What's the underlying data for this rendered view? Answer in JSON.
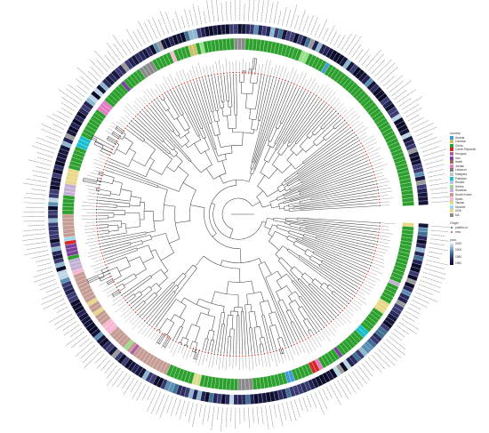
{
  "figure": {
    "leaf_count": 280,
    "legend": {
      "country": {
        "title": "country",
        "items": [
          {
            "label": "Austria",
            "color": "#3f9bd6"
          },
          {
            "label": "Canada",
            "color": "#c9c16a"
          },
          {
            "label": "China",
            "color": "#2ca02c"
          },
          {
            "label": "Czech Republic",
            "color": "#d62728"
          },
          {
            "label": "Hungary",
            "color": "#b05ea1"
          },
          {
            "label": "Iran",
            "color": "#7b3f9c"
          },
          {
            "label": "Israel",
            "color": "#9a6a5a"
          },
          {
            "label": "Jordan",
            "color": "#e57bc3"
          },
          {
            "label": "Lebanon",
            "color": "#7d7d7d"
          },
          {
            "label": "Malaysia",
            "color": "#c7c7c7"
          },
          {
            "label": "Pakistan",
            "color": "#17becf"
          },
          {
            "label": "Russia",
            "color": "#aec7e8"
          },
          {
            "label": "Serbia",
            "color": "#98df8a"
          },
          {
            "label": "Slovakia",
            "color": "#c5b0d5"
          },
          {
            "label": "South Korea",
            "color": "#c49c94"
          },
          {
            "label": "Spain",
            "color": "#f7b6d2"
          },
          {
            "label": "Taiwan",
            "color": "#dbdb8d"
          },
          {
            "label": "Ukraine",
            "color": "#9edae5"
          },
          {
            "label": "USA",
            "color": "#e8d888"
          },
          {
            "label": "NA",
            "color": "#8a8a8a"
          }
        ]
      },
      "origin": {
        "title": "Origin",
        "items": [
          {
            "label": "publish.ct",
            "color": "#555555"
          },
          {
            "label": "new",
            "color": "#e34234"
          }
        ]
      },
      "year": {
        "title": "year",
        "ticks": [
          "2020",
          "2000",
          "1980",
          "1960"
        ]
      }
    }
  }
}
